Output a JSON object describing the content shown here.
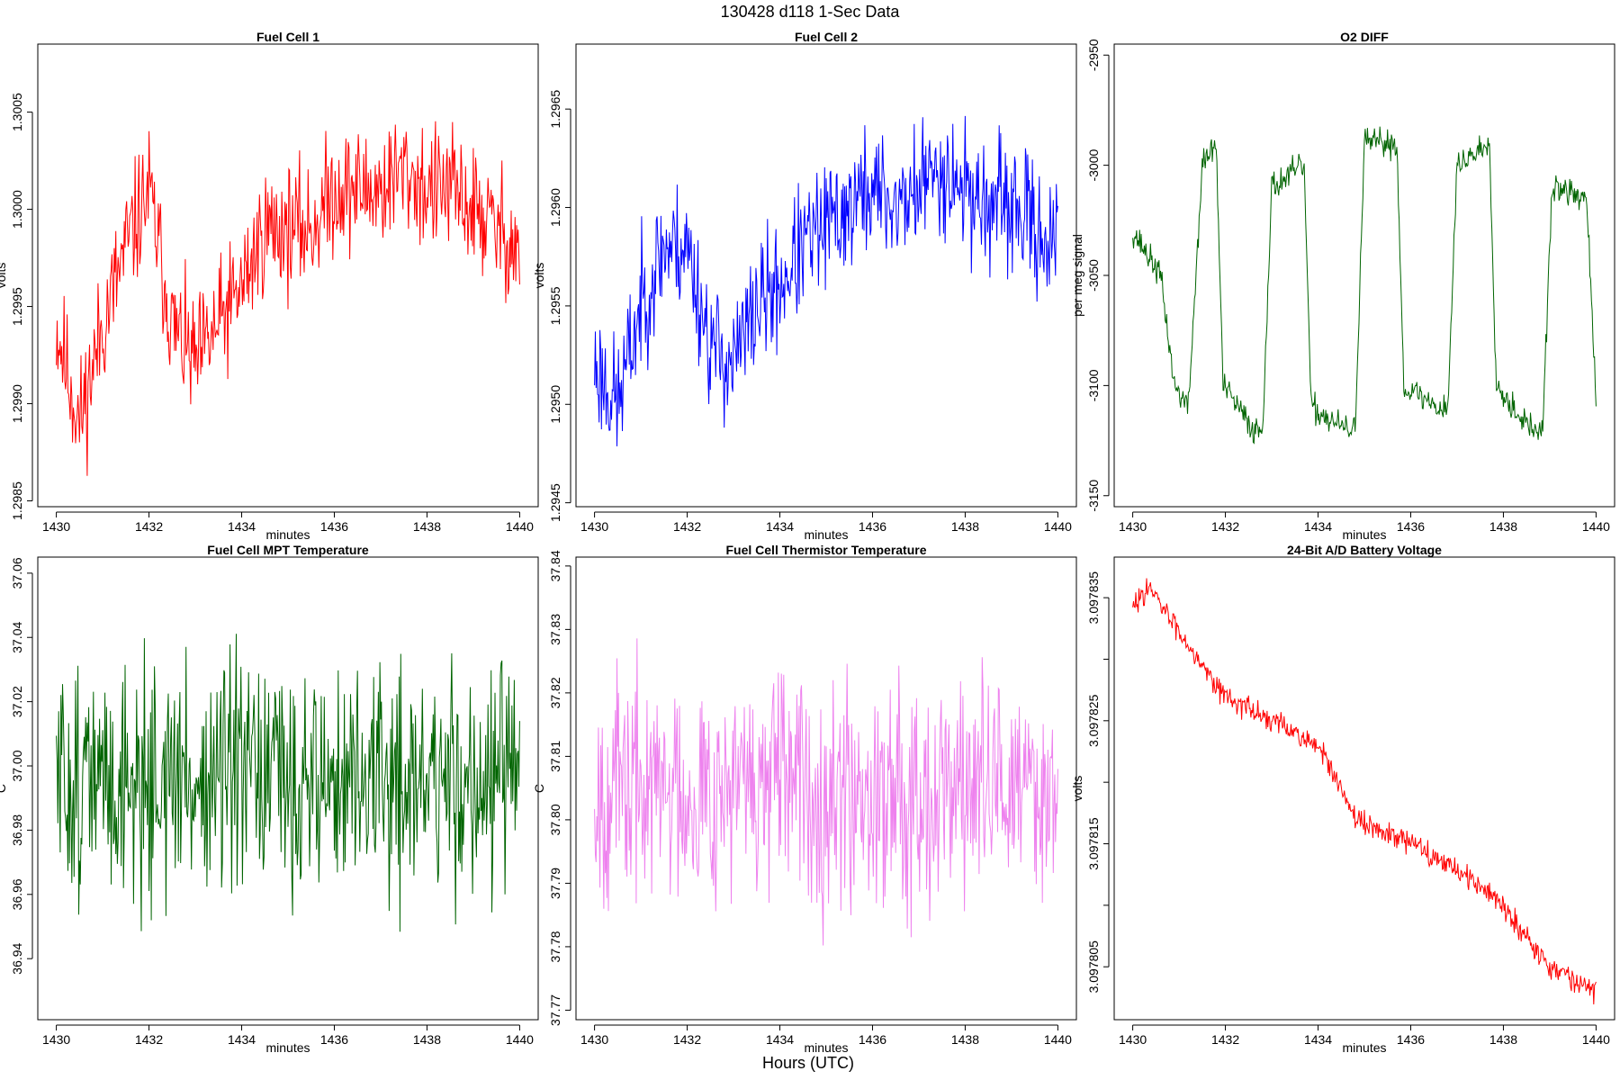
{
  "figure": {
    "title": "130428   d118   1-Sec Data",
    "xlabel": "Hours (UTC)"
  },
  "chart_data": [
    {
      "type": "line",
      "title": "Fuel Cell 1",
      "xlabel": "minutes",
      "ylabel": "volts",
      "color": "#ff0000",
      "xlim": [
        1429.6,
        1440.4
      ],
      "ylim": [
        1.29847,
        1.30085
      ],
      "x_ticks": [
        "1430",
        "1432",
        "1434",
        "1436",
        "1438",
        "1440"
      ],
      "y_ticks": [
        "1.2985",
        "1.2990",
        "1.2995",
        "1.3000",
        "1.3005"
      ],
      "anchors": [
        [
          1430.0,
          1.2994
        ],
        [
          1430.5,
          1.2989
        ],
        [
          1431.0,
          1.2994
        ],
        [
          1431.5,
          1.2998
        ],
        [
          1432.0,
          1.3001
        ],
        [
          1432.5,
          1.2994
        ],
        [
          1433.0,
          1.2992
        ],
        [
          1433.5,
          1.2994
        ],
        [
          1434.0,
          1.2996
        ],
        [
          1434.5,
          1.2999
        ],
        [
          1435.0,
          1.2999
        ],
        [
          1435.5,
          1.2999
        ],
        [
          1436.0,
          1.3001
        ],
        [
          1436.5,
          1.3001
        ],
        [
          1437.0,
          1.3001
        ],
        [
          1437.5,
          1.3002
        ],
        [
          1438.0,
          1.3001
        ],
        [
          1438.5,
          1.3001
        ],
        [
          1439.0,
          1.3
        ],
        [
          1439.5,
          1.2999
        ],
        [
          1440.0,
          1.2998
        ]
      ],
      "noise": 0.0004,
      "seed": 11
    },
    {
      "type": "line",
      "title": "Fuel Cell 2",
      "xlabel": "minutes",
      "ylabel": "volts",
      "color": "#0000ff",
      "xlim": [
        1429.6,
        1440.4
      ],
      "ylim": [
        1.29448,
        1.29683
      ],
      "x_ticks": [
        "1430",
        "1432",
        "1434",
        "1436",
        "1438",
        "1440"
      ],
      "y_ticks": [
        "1.2945",
        "1.2950",
        "1.2955",
        "1.2960",
        "1.2965"
      ],
      "anchors": [
        [
          1430.0,
          1.2952
        ],
        [
          1430.5,
          1.295
        ],
        [
          1431.0,
          1.2955
        ],
        [
          1431.5,
          1.2958
        ],
        [
          1432.0,
          1.2958
        ],
        [
          1432.5,
          1.2953
        ],
        [
          1433.0,
          1.2952
        ],
        [
          1433.5,
          1.2955
        ],
        [
          1434.0,
          1.2956
        ],
        [
          1434.5,
          1.2958
        ],
        [
          1435.0,
          1.2959
        ],
        [
          1435.5,
          1.296
        ],
        [
          1436.0,
          1.2961
        ],
        [
          1436.5,
          1.296
        ],
        [
          1437.0,
          1.2961
        ],
        [
          1437.5,
          1.2962
        ],
        [
          1438.0,
          1.2961
        ],
        [
          1438.5,
          1.296
        ],
        [
          1439.0,
          1.296
        ],
        [
          1439.5,
          1.2959
        ],
        [
          1440.0,
          1.2958
        ]
      ],
      "noise": 0.0004,
      "seed": 23
    },
    {
      "type": "line",
      "title": "O2 DIFF",
      "xlabel": "minutes",
      "ylabel": "per meg signal",
      "color": "#006400",
      "xlim": [
        1429.6,
        1440.4
      ],
      "ylim": [
        -3155,
        -2945
      ],
      "x_ticks": [
        "1430",
        "1432",
        "1434",
        "1436",
        "1438",
        "1440"
      ],
      "y_ticks": [
        "-3150",
        "-3100",
        "-3050",
        "-3000",
        "-2950"
      ],
      "anchors": [
        [
          1430.0,
          -3030
        ],
        [
          1430.6,
          -3050
        ],
        [
          1430.9,
          -3100
        ],
        [
          1431.2,
          -3110
        ],
        [
          1431.5,
          -3000
        ],
        [
          1431.8,
          -2990
        ],
        [
          1431.95,
          -3100
        ],
        [
          1432.6,
          -3120
        ],
        [
          1432.8,
          -3120
        ],
        [
          1433.0,
          -3010
        ],
        [
          1433.7,
          -3000
        ],
        [
          1433.85,
          -3110
        ],
        [
          1434.6,
          -3120
        ],
        [
          1434.8,
          -3120
        ],
        [
          1435.0,
          -2990
        ],
        [
          1435.7,
          -2990
        ],
        [
          1435.85,
          -3100
        ],
        [
          1436.6,
          -3110
        ],
        [
          1436.8,
          -3110
        ],
        [
          1437.0,
          -3000
        ],
        [
          1437.7,
          -2990
        ],
        [
          1437.85,
          -3100
        ],
        [
          1438.6,
          -3120
        ],
        [
          1438.85,
          -3120
        ],
        [
          1439.05,
          -3010
        ],
        [
          1439.8,
          -3015
        ],
        [
          1440.0,
          -3110
        ]
      ],
      "noise": 8,
      "seed": 37
    },
    {
      "type": "line",
      "title": "Fuel Cell MPT Temperature",
      "xlabel": "minutes",
      "ylabel": "C",
      "color": "#006400",
      "xlim": [
        1429.6,
        1440.4
      ],
      "ylim": [
        36.921,
        37.065
      ],
      "x_ticks": [
        "1430",
        "1432",
        "1434",
        "1436",
        "1438",
        "1440"
      ],
      "y_ticks": [
        "36.94",
        "36.96",
        "36.98",
        "37.00",
        "37.02",
        "37.04",
        "37.06"
      ],
      "anchors": [
        [
          1430.0,
          36.995
        ],
        [
          1435.0,
          36.995
        ],
        [
          1440.0,
          36.995
        ]
      ],
      "noise": 0.045,
      "seed": 51
    },
    {
      "type": "line",
      "title": "Fuel Cell Thermistor Temperature",
      "xlabel": "minutes",
      "ylabel": "C",
      "color": "#ee82ee",
      "xlim": [
        1429.6,
        1440.4
      ],
      "ylim": [
        37.7685,
        37.8414
      ],
      "x_ticks": [
        "1430",
        "1432",
        "1434",
        "1436",
        "1438",
        "1440"
      ],
      "y_ticks": [
        "37.77",
        "37.78",
        "37.79",
        "37.80",
        "37.81",
        "37.82",
        "37.83",
        "37.84"
      ],
      "anchors": [
        [
          1430.0,
          37.805
        ],
        [
          1435.0,
          37.805
        ],
        [
          1440.0,
          37.805
        ]
      ],
      "noise": 0.022,
      "seed": 67
    },
    {
      "type": "line",
      "title": "24-Bit A/D Battery Voltage",
      "xlabel": "minutes",
      "ylabel": "volts",
      "color": "#ff0000",
      "xlim": [
        1429.6,
        1440.4
      ],
      "ylim": [
        3.0978007,
        3.0978383
      ],
      "x_ticks": [
        "1430",
        "1432",
        "1434",
        "1436",
        "1438",
        "1440"
      ],
      "y_ticks": [
        "3.097805",
        "",
        "3.097815",
        "",
        "3.097825",
        "",
        "3.097835"
      ],
      "anchors": [
        [
          1430.0,
          3.097834
        ],
        [
          1430.3,
          3.097836
        ],
        [
          1432.0,
          3.097827
        ],
        [
          1434.0,
          3.097823
        ],
        [
          1434.8,
          3.097817
        ],
        [
          1436.0,
          3.097815
        ],
        [
          1437.0,
          3.097813
        ],
        [
          1438.0,
          3.09781
        ],
        [
          1439.0,
          3.097805
        ],
        [
          1440.0,
          3.097803
        ]
      ],
      "noise": 1.2e-06,
      "seed": 83
    }
  ]
}
